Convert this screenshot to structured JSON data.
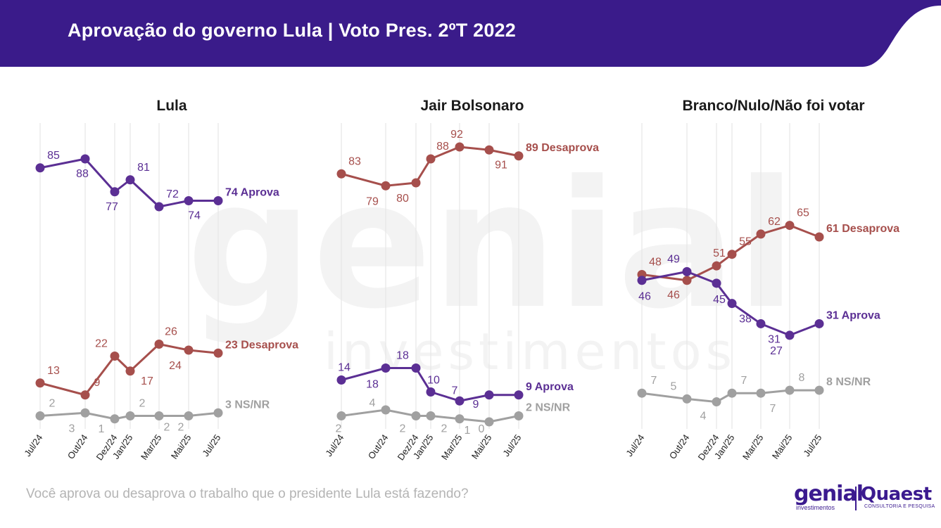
{
  "page": {
    "title": "Aprovação do governo Lula | Voto Pres. 2ºT 2022",
    "question": "Você aprova ou desaprova o trabalho que o presidente Lula está fazendo?",
    "watermark": {
      "line1": "genial",
      "line2": "investimentos"
    },
    "logos": {
      "genial": "genial",
      "genial_sub": "investimentos",
      "quaest": "Quaest",
      "quaest_sub": "CONSULTORIA E PESQUISA"
    },
    "colors": {
      "header": "#3a1b8a",
      "aprova": "#5b2f94",
      "desaprova": "#a64f4c",
      "nsnr": "#a0a0a0",
      "grid": "#e6e6e6"
    }
  },
  "chart_data": [
    {
      "type": "line",
      "title": "Lula",
      "x": [
        "Jul/24",
        "Out/24",
        "Dez/24",
        "Jan/25",
        "Mar/25",
        "Mai/25",
        "Jul/25"
      ],
      "series": [
        {
          "name": "Aprova",
          "values": [
            85,
            88,
            77,
            81,
            72,
            74,
            74
          ],
          "end_label": "74 Aprova"
        },
        {
          "name": "Desaprova",
          "values": [
            13,
            9,
            22,
            17,
            26,
            24,
            23
          ],
          "end_label": "23 Desaprova"
        },
        {
          "name": "NS/NR",
          "values": [
            2,
            3,
            1,
            2,
            2,
            2,
            3
          ],
          "end_label": "3 NS/NR"
        }
      ]
    },
    {
      "type": "line",
      "title": "Jair Bolsonaro",
      "x": [
        "Jul/24",
        "Out/24",
        "Dez/24",
        "Jan/25",
        "Mar/25",
        "Mai/25",
        "Jul/25"
      ],
      "series": [
        {
          "name": "Desaprova",
          "values": [
            83,
            79,
            80,
            88,
            92,
            91,
            89
          ],
          "end_label": "89 Desaprova"
        },
        {
          "name": "Aprova",
          "values": [
            14,
            18,
            18,
            10,
            7,
            9,
            9
          ],
          "end_label": "9 Aprova"
        },
        {
          "name": "NS/NR",
          "values": [
            2,
            4,
            2,
            2,
            1,
            0,
            2
          ],
          "end_label": "2 NS/NR"
        }
      ]
    },
    {
      "type": "line",
      "title": "Branco/Nulo/Não foi votar",
      "x": [
        "Jul/24",
        "Out/24",
        "Dez/24",
        "Jan/25",
        "Mar/25",
        "Mai/25",
        "Jul/25"
      ],
      "series": [
        {
          "name": "Desaprova",
          "values": [
            48,
            46,
            51,
            55,
            62,
            65,
            61
          ],
          "end_label": "61 Desaprova"
        },
        {
          "name": "Aprova",
          "values": [
            46,
            49,
            45,
            38,
            31,
            27,
            31
          ],
          "end_label": "31 Aprova"
        },
        {
          "name": "NS/NR",
          "values": [
            7,
            5,
            4,
            7,
            7,
            8,
            8
          ],
          "end_label": "8 NS/NR"
        }
      ]
    }
  ]
}
